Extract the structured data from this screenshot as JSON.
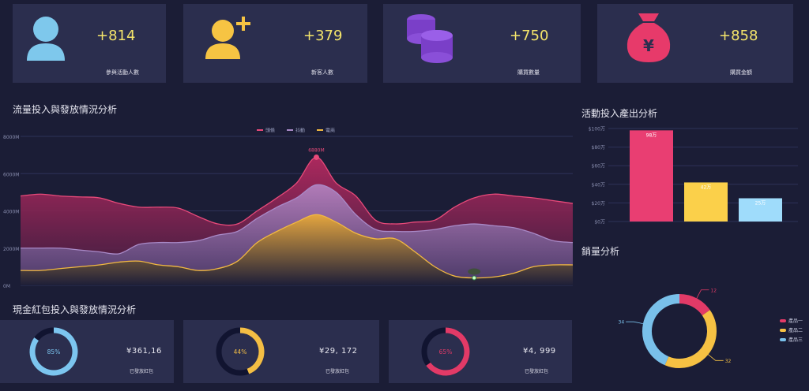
{
  "kpis": [
    {
      "value": "+814",
      "label": "參與活動人數",
      "icon": "user-icon",
      "color": "#7ec8ec"
    },
    {
      "value": "+379",
      "label": "新客人數",
      "icon": "add-user-icon",
      "color": "#f6c443"
    },
    {
      "value": "+750",
      "label": "購買數量",
      "icon": "coin-stack-icon",
      "color": "#8a4fd8"
    },
    {
      "value": "+858",
      "label": "購買金額",
      "icon": "money-bag-icon",
      "color": "#e73a6a"
    }
  ],
  "sections": {
    "traffic": "流量投入與發放情況分析",
    "activity": "活動投入產出分析",
    "sales": "銷量分析",
    "redpacket": "現金紅包投入與發放情況分析"
  },
  "chart_data": [
    {
      "type": "area",
      "legend": [
        "頭條",
        "抖動",
        "電商"
      ],
      "legend_position": "top-center",
      "ytick_labels": [
        "0M",
        "2000M",
        "4000M",
        "6000M",
        "8000M"
      ],
      "ylim": [
        0,
        8000
      ],
      "x": [
        0,
        1,
        2,
        3,
        4,
        5,
        6,
        7,
        8,
        9,
        10,
        11,
        12,
        13,
        14,
        15,
        16,
        17,
        18,
        19,
        20,
        21,
        22,
        23,
        24,
        25,
        26,
        27,
        28
      ],
      "series": [
        {
          "name": "頭條",
          "color": "#e84a7a",
          "values": [
            4800,
            4900,
            4800,
            4750,
            4700,
            4400,
            4200,
            4200,
            4150,
            3700,
            3300,
            3300,
            4000,
            4700,
            5500,
            6880,
            5500,
            4800,
            3500,
            3300,
            3400,
            3500,
            4200,
            4700,
            4900,
            4800,
            4700,
            4550,
            4400
          ]
        },
        {
          "name": "抖動",
          "color": "#a98ac8",
          "values": [
            2000,
            2000,
            2000,
            1900,
            1800,
            1700,
            2200,
            2300,
            2300,
            2400,
            2700,
            2900,
            3600,
            4200,
            4700,
            5400,
            5000,
            3800,
            3000,
            2900,
            2900,
            3000,
            3200,
            3300,
            3200,
            3100,
            2800,
            2400,
            2300
          ]
        },
        {
          "name": "電商",
          "color": "#f2b941",
          "values": [
            800,
            800,
            900,
            1000,
            1100,
            1250,
            1300,
            1100,
            1000,
            800,
            900,
            1300,
            2300,
            2900,
            3400,
            3800,
            3400,
            2800,
            2500,
            2500,
            1800,
            1000,
            500,
            400,
            450,
            650,
            1000,
            1100,
            1100
          ]
        }
      ],
      "annotations": [
        {
          "text": "6880M",
          "series": "頭條",
          "x": 15
        },
        {
          "text": "",
          "series": "電商",
          "x": 23
        }
      ],
      "grid": true
    },
    {
      "type": "bar",
      "categories": [
        "",
        "",
        ""
      ],
      "values": [
        98,
        42,
        25
      ],
      "data_labels": [
        "98万",
        "42万",
        "25万"
      ],
      "colors": [
        "#e93e72",
        "#fbd04a",
        "#9fdcfb"
      ],
      "ytick_labels": [
        "$0万",
        "$20万",
        "$40万",
        "$60万",
        "$80万",
        "$100万"
      ],
      "ylim": [
        0,
        100
      ],
      "grid": true
    },
    {
      "type": "pie",
      "variant": "donut",
      "slices": [
        {
          "name": "產品一",
          "value": 12,
          "label": "12",
          "color": "#e23a67"
        },
        {
          "name": "產品二",
          "value": 32,
          "label": "32",
          "color": "#f6c143"
        },
        {
          "name": "產品三",
          "value": 34,
          "label": "34",
          "color": "#79c0ea"
        }
      ],
      "legend_position": "right"
    },
    {
      "type": "pie",
      "variant": "progress-ring",
      "percent": 85,
      "label": "85%",
      "color": "#7cc5ef",
      "track": "#111430",
      "amount": "¥361,16",
      "caption": "已發放紅包"
    },
    {
      "type": "pie",
      "variant": "progress-ring",
      "percent": 44,
      "label": "44%",
      "color": "#f4be44",
      "track": "#111430",
      "amount": "¥29, 172",
      "caption": "已發放紅包"
    },
    {
      "type": "pie",
      "variant": "progress-ring",
      "percent": 65,
      "label": "65%",
      "color": "#e23a67",
      "track": "#111430",
      "amount": "¥4, 999",
      "caption": "已發放紅包"
    }
  ]
}
